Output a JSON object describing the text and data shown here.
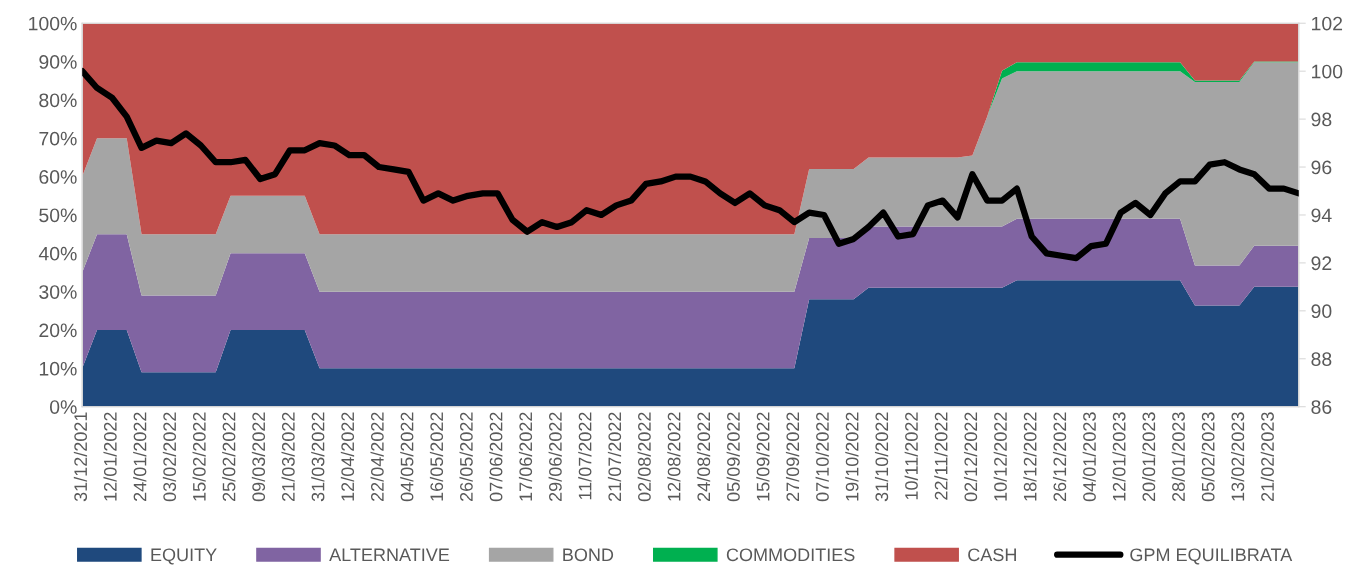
{
  "chart_data": {
    "type": "area",
    "stacked": true,
    "categories": [
      "31/12/2021",
      null,
      "12/01/2022",
      null,
      "24/01/2022",
      null,
      "03/02/2022",
      null,
      "15/02/2022",
      null,
      "25/02/2022",
      null,
      "09/03/2022",
      null,
      "21/03/2022",
      null,
      "31/03/2022",
      null,
      "12/04/2022",
      null,
      "22/04/2022",
      null,
      "04/05/2022",
      null,
      "16/05/2022",
      null,
      "26/05/2022",
      null,
      "07/06/2022",
      null,
      "17/06/2022",
      null,
      "29/06/2022",
      null,
      "11/07/2022",
      null,
      "21/07/2022",
      null,
      "02/08/2022",
      null,
      "12/08/2022",
      null,
      "24/08/2022",
      null,
      "05/09/2022",
      null,
      "15/09/2022",
      null,
      "27/09/2022",
      null,
      "07/10/2022",
      null,
      "19/10/2022",
      null,
      "31/10/2022",
      null,
      "10/11/2022",
      null,
      "22/11/2022",
      null,
      "02/12/2022",
      null,
      "10/12/2022",
      null,
      "18/12/2022",
      null,
      "26/12/2022",
      null,
      "04/01/2023",
      null,
      "12/01/2023",
      null,
      "20/01/2023",
      null,
      "28/01/2023",
      null,
      "05/02/2023",
      null,
      "13/02/2023",
      null,
      "21/02/2023",
      null,
      null
    ],
    "series": [
      {
        "name": "EQUITY",
        "color": "#1f497d",
        "values": [
          10,
          20,
          20,
          20,
          9,
          9,
          9,
          9,
          9,
          9,
          20,
          20,
          20,
          20,
          20,
          20,
          10,
          10,
          10,
          10,
          10,
          10,
          10,
          10,
          10,
          10,
          10,
          10,
          10,
          10,
          10,
          10,
          10,
          10,
          10,
          10,
          10,
          10,
          10,
          10,
          10,
          10,
          10,
          10,
          10,
          10,
          10,
          10,
          10,
          28,
          28,
          28,
          28,
          31,
          31,
          31,
          31,
          31,
          31,
          31,
          31,
          31,
          31,
          33,
          33,
          33,
          33,
          33,
          33,
          33,
          33,
          33,
          33,
          33,
          33,
          26.4,
          26.4,
          26.4,
          26.4,
          31.3,
          31.3,
          31.3,
          31.3
        ]
      },
      {
        "name": "ALTERNATIVE",
        "color": "#8064a2",
        "values": [
          25,
          25,
          25,
          25,
          20,
          20,
          20,
          20,
          20,
          20,
          20,
          20,
          20,
          20,
          20,
          20,
          20,
          20,
          20,
          20,
          20,
          20,
          20,
          20,
          20,
          20,
          20,
          20,
          20,
          20,
          20,
          20,
          20,
          20,
          20,
          20,
          20,
          20,
          20,
          20,
          20,
          20,
          20,
          20,
          20,
          20,
          20,
          20,
          20,
          16,
          16,
          16,
          16,
          16,
          16,
          16,
          16,
          16,
          16,
          16,
          16,
          16,
          16,
          16,
          16,
          16,
          16,
          16,
          16,
          16,
          16,
          16,
          16,
          16,
          16,
          10.4,
          10.4,
          10.4,
          10.4,
          10.7,
          10.7,
          10.7,
          10.7
        ]
      },
      {
        "name": "BOND",
        "color": "#a5a5a5",
        "values": [
          25,
          25,
          25,
          25,
          16,
          16,
          16,
          16,
          16,
          16,
          15,
          15,
          15,
          15,
          15,
          15,
          15,
          15,
          15,
          15,
          15,
          15,
          15,
          15,
          15,
          15,
          15,
          15,
          15,
          15,
          15,
          15,
          15,
          15,
          15,
          15,
          15,
          15,
          15,
          15,
          15,
          15,
          15,
          15,
          15,
          15,
          15,
          15,
          15,
          18,
          18,
          18,
          18,
          18,
          18,
          18,
          18,
          18,
          18,
          18,
          18.5,
          28.7,
          38.6,
          38.5,
          38.5,
          38.5,
          38.5,
          38.5,
          38.5,
          38.5,
          38.5,
          38.5,
          38.5,
          38.5,
          38.5,
          47.9,
          47.9,
          47.9,
          47.9,
          47.8,
          47.8,
          47.8,
          47.8
        ]
      },
      {
        "name": "COMMODITIES",
        "color": "#00b050",
        "values": [
          0,
          0,
          0,
          0,
          0,
          0,
          0,
          0,
          0,
          0,
          0,
          0,
          0,
          0,
          0,
          0,
          0,
          0,
          0,
          0,
          0,
          0,
          0,
          0,
          0,
          0,
          0,
          0,
          0,
          0,
          0,
          0,
          0,
          0,
          0,
          0,
          0,
          0,
          0,
          0,
          0,
          0,
          0,
          0,
          0,
          0,
          0,
          0,
          0,
          0,
          0,
          0,
          0,
          0,
          0,
          0,
          0,
          0,
          0,
          0,
          0,
          0,
          2,
          2.3,
          2.3,
          2.3,
          2.3,
          2.3,
          2.3,
          2.3,
          2.3,
          2.3,
          2.3,
          2.3,
          2.3,
          0.4,
          0.4,
          0.4,
          0.4,
          0.2,
          0.2,
          0.2,
          0.2
        ]
      },
      {
        "name": "CASH",
        "color": "#c0504d",
        "values": [
          40,
          30,
          30,
          30,
          55,
          55,
          55,
          55,
          55,
          55,
          45,
          45,
          45,
          45,
          45,
          45,
          55,
          55,
          55,
          55,
          55,
          55,
          55,
          55,
          55,
          55,
          55,
          55,
          55,
          55,
          55,
          55,
          55,
          55,
          55,
          55,
          55,
          55,
          55,
          55,
          55,
          55,
          55,
          55,
          55,
          55,
          55,
          55,
          55,
          38,
          38,
          38,
          38,
          35,
          35,
          35,
          35,
          35,
          35,
          35,
          34.5,
          24.3,
          12.4,
          10.2,
          10.2,
          10.2,
          10.2,
          10.2,
          10.2,
          10.2,
          10.2,
          10.2,
          10.2,
          10.2,
          10.2,
          14.9,
          14.9,
          14.9,
          14.9,
          10,
          10,
          10,
          10
        ]
      },
      {
        "name": "GPM EQUILIBRATA",
        "type": "line",
        "axis": "y2",
        "color": "#000000",
        "values": [
          100.0,
          99.3,
          98.9,
          98.1,
          96.8,
          97.1,
          97.0,
          97.4,
          96.9,
          96.2,
          96.2,
          96.3,
          95.5,
          95.7,
          96.7,
          96.7,
          97.0,
          96.9,
          96.5,
          96.5,
          96.0,
          95.9,
          95.8,
          94.6,
          94.9,
          94.6,
          94.8,
          94.9,
          94.9,
          93.8,
          93.3,
          93.7,
          93.5,
          93.7,
          94.2,
          94.0,
          94.4,
          94.6,
          95.3,
          95.4,
          95.6,
          95.6,
          95.4,
          94.9,
          94.5,
          94.9,
          94.4,
          94.2,
          93.7,
          94.1,
          94.0,
          92.8,
          93.0,
          93.5,
          94.1,
          93.1,
          93.2,
          94.4,
          94.6,
          93.9,
          95.7,
          94.6,
          94.6,
          95.1,
          93.1,
          92.4,
          92.3,
          92.2,
          92.7,
          92.8,
          94.1,
          94.5,
          94.0,
          94.9,
          95.4,
          95.4,
          96.1,
          96.2,
          95.9,
          95.7,
          95.1,
          95.1,
          94.9
        ]
      }
    ],
    "ylim": [
      0,
      100
    ],
    "yticks": [
      {
        "value": 0,
        "label": "0%"
      },
      {
        "value": 10,
        "label": "10%"
      },
      {
        "value": 20,
        "label": "20%"
      },
      {
        "value": 30,
        "label": "30%"
      },
      {
        "value": 40,
        "label": "40%"
      },
      {
        "value": 50,
        "label": "50%"
      },
      {
        "value": 60,
        "label": "60%"
      },
      {
        "value": 70,
        "label": "70%"
      },
      {
        "value": 80,
        "label": "80%"
      },
      {
        "value": 90,
        "label": "90%"
      },
      {
        "value": 100,
        "label": "100%"
      }
    ],
    "y2lim": [
      86,
      102
    ],
    "y2ticks": [
      86,
      88,
      90,
      92,
      94,
      96,
      98,
      100,
      102
    ],
    "legend": "bottom",
    "grid": false
  }
}
